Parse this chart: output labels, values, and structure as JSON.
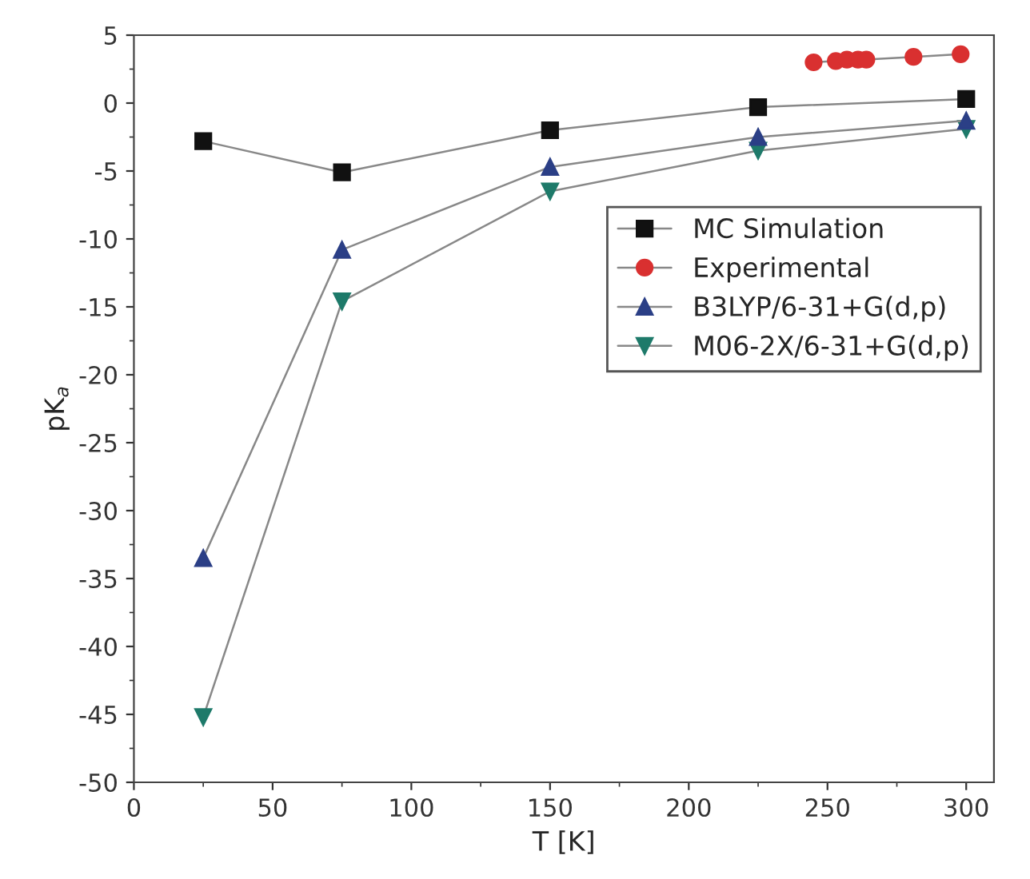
{
  "chart_data": {
    "type": "line",
    "xlabel": "T [K]",
    "ylabel": "pK$_{a}$",
    "xlim": [
      0,
      310
    ],
    "xticks": [
      0,
      50,
      100,
      150,
      200,
      250,
      300
    ],
    "ylim": [
      -50,
      5
    ],
    "yticks": [
      -50,
      -45,
      -40,
      -35,
      -30,
      -25,
      -20,
      -15,
      -10,
      -5,
      0,
      5
    ],
    "grid": false,
    "legend": "right",
    "line_style": "solid",
    "series": [
      {
        "name": "MC Simulation",
        "color": "#111111",
        "marker": "square",
        "x": [
          25,
          75,
          150,
          225,
          300
        ],
        "values": [
          -2.8,
          -5.1,
          -2.0,
          -0.3,
          0.3
        ]
      },
      {
        "name": "Experimental",
        "color": "#d93030",
        "marker": "circle",
        "x": [
          245,
          253,
          257,
          261,
          264,
          281,
          298
        ],
        "values": [
          3.0,
          3.1,
          3.2,
          3.2,
          3.2,
          3.4,
          3.6
        ]
      },
      {
        "name": "B3LYP/6-31+G(d,p)",
        "color": "#2b3f86",
        "marker": "triangle",
        "x": [
          25,
          75,
          150,
          225,
          300
        ],
        "values": [
          -33.5,
          -10.8,
          -4.7,
          -2.5,
          -1.3
        ]
      },
      {
        "name": "M06-2X/6-31+G(d,p)",
        "color": "#1e7a6a",
        "marker": "triangle_down",
        "x": [
          25,
          75,
          150,
          225,
          300
        ],
        "values": [
          -45.2,
          -14.6,
          -6.5,
          -3.5,
          -1.9
        ]
      }
    ]
  }
}
